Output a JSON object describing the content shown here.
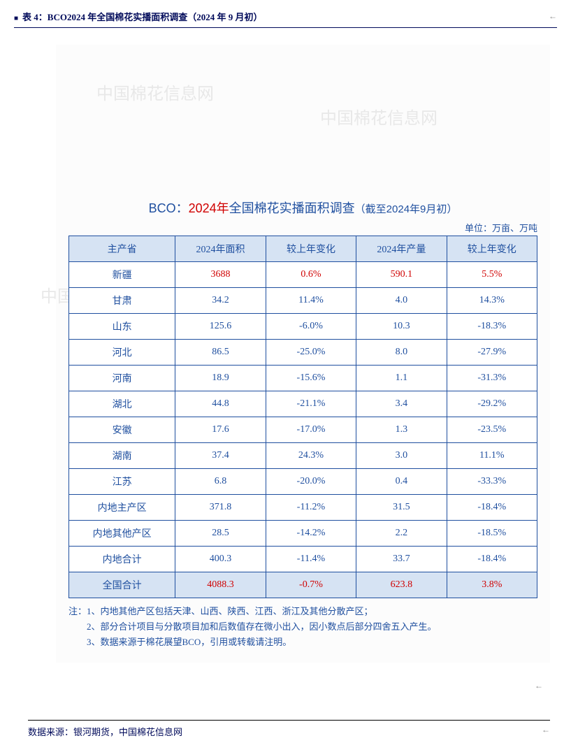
{
  "caption": "表 4：BCO2024 年全国棉花实播面积调查（2024 年 9 月初）",
  "caption_sym": "←",
  "chart": {
    "title_prefix": "BCO：",
    "title_year": "2024年",
    "title_rest": "全国棉花实播面积调查",
    "title_sub": "（截至2024年9月初）",
    "unit": "单位：万亩、万吨",
    "columns": [
      "主产省",
      "2024年面积",
      "较上年变化",
      "2024年产量",
      "较上年变化"
    ],
    "rows": [
      {
        "prov": "新疆",
        "area": "3688",
        "area_chg": "0.6%",
        "yield": "590.1",
        "yield_chg": "5.5%",
        "highlight": true
      },
      {
        "prov": "甘肃",
        "area": "34.2",
        "area_chg": "11.4%",
        "yield": "4.0",
        "yield_chg": "14.3%"
      },
      {
        "prov": "山东",
        "area": "125.6",
        "area_chg": "-6.0%",
        "yield": "10.3",
        "yield_chg": "-18.3%"
      },
      {
        "prov": "河北",
        "area": "86.5",
        "area_chg": "-25.0%",
        "yield": "8.0",
        "yield_chg": "-27.9%"
      },
      {
        "prov": "河南",
        "area": "18.9",
        "area_chg": "-15.6%",
        "yield": "1.1",
        "yield_chg": "-31.3%"
      },
      {
        "prov": "湖北",
        "area": "44.8",
        "area_chg": "-21.1%",
        "yield": "3.4",
        "yield_chg": "-29.2%"
      },
      {
        "prov": "安徽",
        "area": "17.6",
        "area_chg": "-17.0%",
        "yield": "1.3",
        "yield_chg": "-23.5%"
      },
      {
        "prov": "湖南",
        "area": "37.4",
        "area_chg": "24.3%",
        "yield": "3.0",
        "yield_chg": "11.1%"
      },
      {
        "prov": "江苏",
        "area": "6.8",
        "area_chg": "-20.0%",
        "yield": "0.4",
        "yield_chg": "-33.3%"
      },
      {
        "prov": "内地主产区",
        "area": "371.8",
        "area_chg": "-11.2%",
        "yield": "31.5",
        "yield_chg": "-18.4%"
      },
      {
        "prov": "内地其他产区",
        "area": "28.5",
        "area_chg": "-14.2%",
        "yield": "2.2",
        "yield_chg": "-18.5%"
      },
      {
        "prov": "内地合计",
        "area": "400.3",
        "area_chg": "-11.4%",
        "yield": "33.7",
        "yield_chg": "-18.4%"
      },
      {
        "prov": "全国合计",
        "area": "4088.3",
        "area_chg": "-0.7%",
        "yield": "623.8",
        "yield_chg": "3.8%",
        "total": true
      }
    ],
    "notes": "注：1、内地其他产区包括天津、山西、陕西、江西、浙江及其他分散产区；\n　　2、部分合计项目与分散项目加和后数值存在微小出入，因小数点后部分四舍五入产生。\n　　3、数据来源于棉花展望BCO，引用或转载请注明。",
    "watermark": "中国棉花信息网"
  },
  "source": "数据来源：银河期货，中国棉花信息网",
  "source_sym": "←",
  "colors": {
    "accent": "#1f4f9f",
    "header_bg": "#d6e3f3",
    "highlight": "#d00000",
    "caption": "#000a5a"
  }
}
